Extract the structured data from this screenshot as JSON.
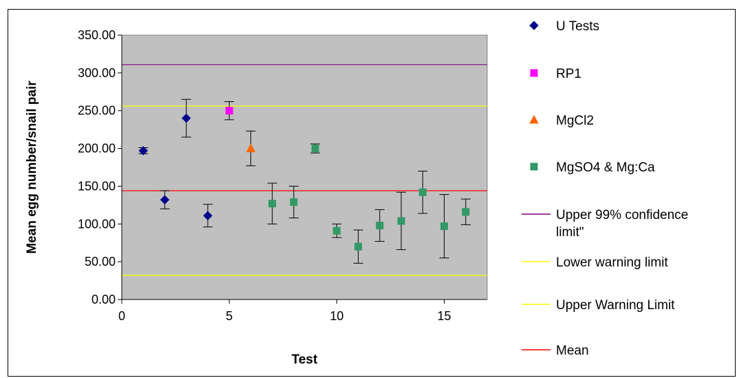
{
  "chart_data": {
    "type": "scatter",
    "title": "",
    "xlabel": "Test",
    "ylabel": "Mean egg number/snail pair",
    "xlim": [
      0,
      17
    ],
    "ylim": [
      0,
      350
    ],
    "x_ticks": [
      0,
      5,
      10,
      15
    ],
    "y_ticks": [
      "0.00",
      "50.00",
      "100.00",
      "150.00",
      "200.00",
      "250.00",
      "300.00",
      "350.00"
    ],
    "grid": false,
    "plot_background": "#c0c0c0",
    "legend_position": "right",
    "series": [
      {
        "name": "U Tests",
        "marker": "diamond",
        "color": "#00008b",
        "points": [
          {
            "x": 1,
            "y": 197,
            "err": 4
          },
          {
            "x": 2,
            "y": 132,
            "err": 12
          },
          {
            "x": 3,
            "y": 240,
            "err": 25
          },
          {
            "x": 4,
            "y": 111,
            "err": 15
          }
        ]
      },
      {
        "name": "RP1",
        "marker": "square",
        "color": "#ff00ff",
        "points": [
          {
            "x": 5,
            "y": 250,
            "err": 12
          }
        ]
      },
      {
        "name": "MgCl2",
        "marker": "triangle",
        "color": "#ff6600",
        "points": [
          {
            "x": 6,
            "y": 200,
            "err": 23
          }
        ]
      },
      {
        "name": "MgSO4 & Mg:Ca",
        "marker": "square",
        "color": "#339966",
        "points": [
          {
            "x": 7,
            "y": 127,
            "err": 27
          },
          {
            "x": 8,
            "y": 129,
            "err": 21
          },
          {
            "x": 9,
            "y": 200,
            "err": 6
          },
          {
            "x": 10,
            "y": 91,
            "err": 9
          },
          {
            "x": 11,
            "y": 70,
            "err": 22
          },
          {
            "x": 12,
            "y": 98,
            "err": 21
          },
          {
            "x": 13,
            "y": 104,
            "err": 38
          },
          {
            "x": 14,
            "y": 142,
            "err": 28
          },
          {
            "x": 15,
            "y": 97,
            "err": 42
          },
          {
            "x": 16,
            "y": 116,
            "err": 17
          }
        ]
      }
    ],
    "reference_lines": [
      {
        "name": "Upper 99% confidence limit\"",
        "y": 311,
        "color": "#800080"
      },
      {
        "name": "Lower warning limit",
        "y": 32,
        "color": "#ffff00"
      },
      {
        "name": "Upper Warning Limit",
        "y": 256,
        "color": "#ffff00"
      },
      {
        "name": "Mean",
        "y": 144,
        "color": "#ff0000"
      }
    ]
  },
  "legend": {
    "items": [
      {
        "label": "U Tests",
        "kind": "marker",
        "marker": "diamond",
        "color": "#00008b"
      },
      {
        "label": "RP1",
        "kind": "marker",
        "marker": "square",
        "color": "#ff00ff"
      },
      {
        "label": "MgCl2",
        "kind": "marker",
        "marker": "triangle",
        "color": "#ff6600"
      },
      {
        "label": "MgSO4 & Mg:Ca",
        "kind": "marker",
        "marker": "square",
        "color": "#339966"
      },
      {
        "label_lines": [
          "Upper 99% confidence",
          "limit\""
        ],
        "kind": "line",
        "color": "#800080"
      },
      {
        "label": "Lower warning limit",
        "kind": "line",
        "color": "#ffff00"
      },
      {
        "label": "Upper Warning Limit",
        "kind": "line",
        "color": "#ffff00"
      },
      {
        "label": "Mean",
        "kind": "line",
        "color": "#ff0000"
      }
    ]
  }
}
